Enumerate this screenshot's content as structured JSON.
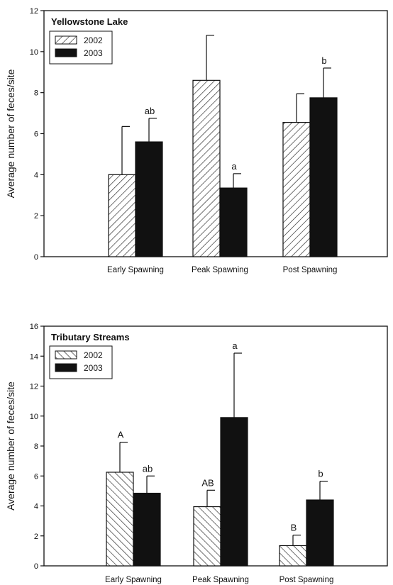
{
  "chart_data": [
    {
      "type": "bar",
      "title": "Yellowstone Lake",
      "xlabel": "",
      "ylabel": "Average number of feces/site",
      "ylim": [
        0,
        12
      ],
      "yticks": [
        0,
        2,
        4,
        6,
        8,
        10,
        12
      ],
      "categories": [
        "Early Spawning",
        "Peak Spawning",
        "Post Spawning"
      ],
      "legend_position": "top-left",
      "series": [
        {
          "name": "2002",
          "fill": "diagonal-hatch",
          "values": [
            4.0,
            8.6,
            6.55
          ],
          "errors": [
            2.35,
            2.2,
            1.4
          ]
        },
        {
          "name": "2003",
          "fill": "#111111",
          "values": [
            5.6,
            3.35,
            7.75
          ],
          "errors": [
            1.15,
            0.7,
            1.45
          ]
        }
      ],
      "annotations": [
        {
          "category": "Early Spawning",
          "series": "2003",
          "text": "ab"
        },
        {
          "category": "Peak Spawning",
          "series": "2003",
          "text": "a"
        },
        {
          "category": "Post Spawning",
          "series": "2003",
          "text": "b"
        }
      ]
    },
    {
      "type": "bar",
      "title": "Tributary Streams",
      "xlabel": "",
      "ylabel": "Average number of feces/site",
      "ylim": [
        0,
        16
      ],
      "yticks": [
        0,
        2,
        4,
        6,
        8,
        10,
        12,
        14,
        16
      ],
      "categories": [
        "Early Spawning",
        "Peak Spawning",
        "Post Spawning"
      ],
      "legend_position": "top-left",
      "series": [
        {
          "name": "2002",
          "fill": "diagonal-hatch",
          "values": [
            6.25,
            3.95,
            1.35
          ],
          "errors": [
            2.0,
            1.1,
            0.7
          ]
        },
        {
          "name": "2003",
          "fill": "#111111",
          "values": [
            4.85,
            9.9,
            4.4
          ],
          "errors": [
            1.15,
            4.3,
            1.25
          ]
        }
      ],
      "annotations": [
        {
          "category": "Early Spawning",
          "series": "2002",
          "text": "A"
        },
        {
          "category": "Early Spawning",
          "series": "2003",
          "text": "ab"
        },
        {
          "category": "Peak Spawning",
          "series": "2002",
          "text": "AB"
        },
        {
          "category": "Peak Spawning",
          "series": "2003",
          "text": "a"
        },
        {
          "category": "Post Spawning",
          "series": "2002",
          "text": "B"
        },
        {
          "category": "Post Spawning",
          "series": "2003",
          "text": "b"
        }
      ]
    }
  ]
}
